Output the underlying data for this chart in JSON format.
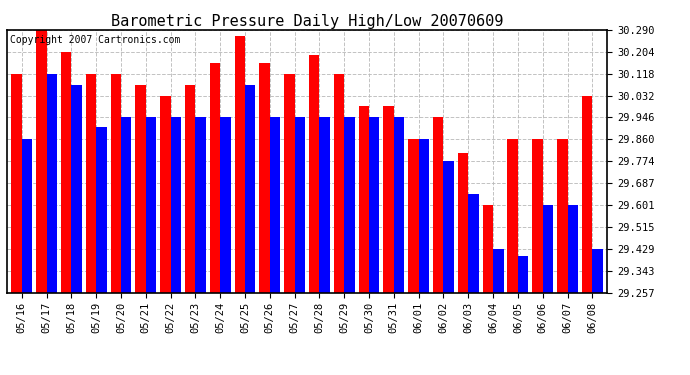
{
  "title": "Barometric Pressure Daily High/Low 20070609",
  "copyright": "Copyright 2007 Cartronics.com",
  "categories": [
    "05/16",
    "05/17",
    "05/18",
    "05/19",
    "05/20",
    "05/21",
    "05/22",
    "05/23",
    "05/24",
    "05/25",
    "05/26",
    "05/27",
    "05/28",
    "05/29",
    "05/30",
    "05/31",
    "06/01",
    "06/02",
    "06/03",
    "06/04",
    "06/05",
    "06/06",
    "06/07",
    "06/08"
  ],
  "highs": [
    30.118,
    30.29,
    30.204,
    30.118,
    30.118,
    30.075,
    30.032,
    30.075,
    30.161,
    30.268,
    30.161,
    30.118,
    30.193,
    30.118,
    29.99,
    29.99,
    29.86,
    29.946,
    29.806,
    29.601,
    29.86,
    29.86,
    29.86,
    30.032
  ],
  "lows": [
    29.86,
    30.118,
    30.075,
    29.908,
    29.946,
    29.946,
    29.946,
    29.946,
    29.946,
    30.075,
    29.946,
    29.946,
    29.946,
    29.946,
    29.946,
    29.946,
    29.86,
    29.774,
    29.644,
    29.429,
    29.4,
    29.601,
    29.601,
    29.429
  ],
  "ylim_min": 29.257,
  "ylim_max": 30.29,
  "yticks": [
    29.257,
    29.343,
    29.429,
    29.515,
    29.601,
    29.687,
    29.774,
    29.86,
    29.946,
    30.032,
    30.118,
    30.204,
    30.29
  ],
  "bar_color_high": "#ff0000",
  "bar_color_low": "#0000ff",
  "bg_color": "#ffffff",
  "plot_bg_color": "#ffffff",
  "grid_color": "#bbbbbb",
  "title_fontsize": 11,
  "tick_fontsize": 7.5,
  "copyright_fontsize": 7
}
